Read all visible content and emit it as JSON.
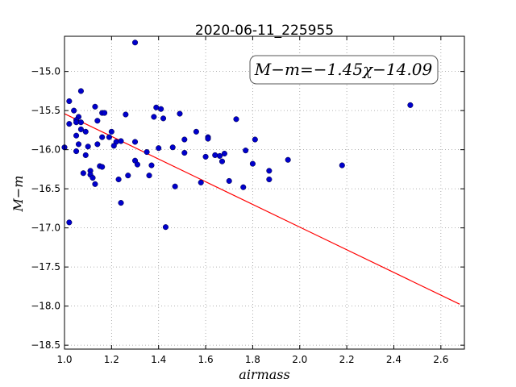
{
  "chart_data": {
    "type": "scatter",
    "title": "2020-06-11_225955",
    "xlabel": "airmass",
    "ylabel": "M−m",
    "annotation": "M−m=−1.45χ−14.09",
    "xlim": [
      1.0,
      2.7
    ],
    "ylim": [
      -18.55,
      -14.55
    ],
    "x_ticks": [
      1.0,
      1.2,
      1.4,
      1.6,
      1.8,
      2.0,
      2.2,
      2.4,
      2.6
    ],
    "x_tick_labels": [
      "1.0",
      "1.2",
      "1.4",
      "1.6",
      "1.8",
      "2.0",
      "2.2",
      "2.4",
      "2.6"
    ],
    "y_ticks": [
      -15.0,
      -15.5,
      -16.0,
      -16.5,
      -17.0,
      -17.5,
      -18.0,
      -18.5
    ],
    "y_tick_labels": [
      "−15.0",
      "−15.5",
      "−16.0",
      "−16.5",
      "−17.0",
      "−17.5",
      "−18.0",
      "−18.5"
    ],
    "grid": true,
    "colors": {
      "points": "#0000cc",
      "fit_line": "#ff0000",
      "grid": "#999999"
    },
    "fit_line": {
      "slope": -1.45,
      "intercept": -14.09,
      "x_range": [
        1.0,
        2.68
      ]
    },
    "series": [
      {
        "x": [
          1.3,
          1.07,
          1.02,
          1.04,
          1.13,
          1.16,
          1.06,
          1.02,
          1.05,
          1.07,
          1.05,
          1.14,
          1.17,
          1.07,
          1.2,
          1.09,
          1.05,
          1.0,
          1.06,
          1.05,
          1.1,
          1.14,
          1.16,
          1.19,
          1.22,
          1.24,
          1.26,
          1.21,
          1.3,
          1.3,
          1.35,
          1.38,
          1.39,
          1.41,
          1.42,
          1.37,
          1.4,
          1.46,
          1.49,
          1.51,
          1.56,
          1.61,
          1.61,
          1.73,
          1.81,
          1.77,
          1.64,
          1.66,
          1.68,
          1.51,
          1.6,
          1.67,
          1.8,
          1.87,
          1.95,
          1.87,
          1.11,
          1.08,
          1.11,
          1.12,
          1.15,
          1.16,
          1.23,
          1.27,
          1.31,
          1.36,
          1.47,
          1.58,
          1.7,
          1.76,
          2.18,
          2.47,
          1.24,
          1.43,
          1.02,
          1.09,
          1.13
        ],
        "y": [
          -14.63,
          -15.25,
          -15.38,
          -15.5,
          -15.45,
          -15.53,
          -15.58,
          -15.67,
          -15.62,
          -15.65,
          -15.65,
          -15.63,
          -15.53,
          -15.74,
          -15.77,
          -15.77,
          -15.82,
          -15.97,
          -15.93,
          -16.02,
          -15.96,
          -15.93,
          -15.84,
          -15.84,
          -15.9,
          -15.89,
          -15.55,
          -15.95,
          -15.9,
          -16.14,
          -16.03,
          -15.58,
          -15.46,
          -15.48,
          -15.6,
          -16.2,
          -15.98,
          -15.97,
          -15.54,
          -16.04,
          -15.77,
          -15.84,
          -15.86,
          -15.61,
          -15.87,
          -16.01,
          -16.07,
          -16.08,
          -16.05,
          -15.87,
          -16.09,
          -16.15,
          -16.18,
          -16.27,
          -16.13,
          -16.38,
          -16.27,
          -16.3,
          -16.32,
          -16.36,
          -16.21,
          -16.22,
          -16.38,
          -16.33,
          -16.19,
          -16.33,
          -16.47,
          -16.42,
          -16.4,
          -16.48,
          -16.2,
          -15.43,
          -16.68,
          -16.99,
          -16.93,
          -16.07,
          -16.44
        ]
      }
    ]
  }
}
